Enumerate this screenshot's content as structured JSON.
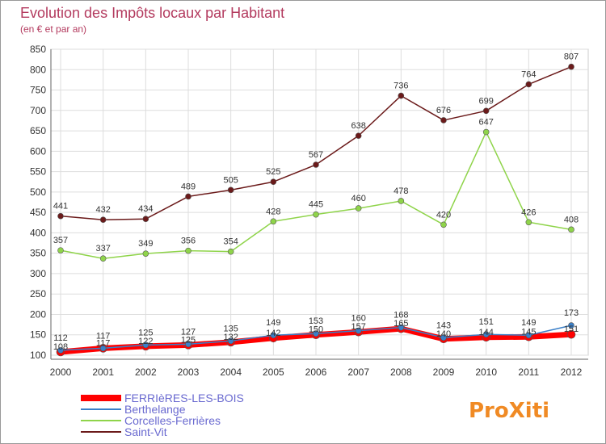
{
  "chart_data": {
    "type": "line",
    "title": "Evolution des Impôts locaux par Habitant",
    "subtitle": "(en € et par an)",
    "xlabel": "",
    "ylabel": "",
    "categories": [
      "2000",
      "2001",
      "2002",
      "2003",
      "2004",
      "2005",
      "2006",
      "2007",
      "2008",
      "2009",
      "2010",
      "2011",
      "2012"
    ],
    "ylim": [
      100,
      850
    ],
    "yticks": [
      100,
      150,
      200,
      250,
      300,
      350,
      400,
      450,
      500,
      550,
      600,
      650,
      700,
      750,
      800,
      850
    ],
    "grid": true,
    "legend_position": "bottom-left",
    "series": [
      {
        "name": "FERRIèRES-LES-BOIS",
        "color": "#ff0000",
        "values": [
          108,
          117,
          122,
          125,
          132,
          142,
          150,
          157,
          165,
          140,
          144,
          145,
          151
        ]
      },
      {
        "name": "Berthelange",
        "color": "#3a7fc8",
        "values": [
          112,
          117,
          125,
          127,
          135,
          149,
          153,
          160,
          168,
          143,
          151,
          149,
          173
        ]
      },
      {
        "name": "Corcelles-Ferrières",
        "color": "#8fd44a",
        "values": [
          357,
          337,
          349,
          356,
          354,
          428,
          445,
          460,
          478,
          420,
          647,
          426,
          408
        ]
      },
      {
        "name": "Saint-Vit",
        "color": "#6b1a1a",
        "values": [
          441,
          432,
          434,
          489,
          505,
          525,
          567,
          638,
          736,
          676,
          699,
          764,
          807
        ]
      }
    ]
  },
  "colors": {
    "title": "#b33a5e",
    "legend_text": "#6a6ad0",
    "axis": "#333333",
    "grid": "#dddddd",
    "label": "#333333"
  },
  "logo": {
    "text": "ProXiti"
  }
}
